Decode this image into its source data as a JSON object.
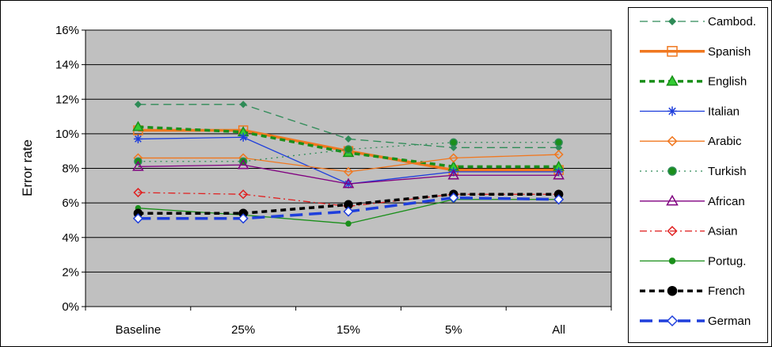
{
  "chart_data": {
    "type": "line",
    "categories": [
      "Baseline",
      "25%",
      "15%",
      "5%",
      "All"
    ],
    "ylabel": "Error rate",
    "ylim": [
      0,
      16
    ],
    "yticks": [
      "0%",
      "2%",
      "4%",
      "6%",
      "8%",
      "10%",
      "12%",
      "14%",
      "16%"
    ],
    "plot_background": "#c0c0c0",
    "grid": "horizontal",
    "legend_position": "right",
    "series": [
      {
        "name": "Cambod.",
        "values": [
          11.7,
          11.7,
          9.7,
          9.2,
          9.2
        ],
        "color": "#2e8b57",
        "dash": "10,6",
        "width": 1.3,
        "marker": "diamond",
        "fill": "#2e8b57",
        "msize": 3.5
      },
      {
        "name": "Spanish",
        "values": [
          10.2,
          10.2,
          9.0,
          7.9,
          7.9
        ],
        "color": "#f07820",
        "dash": "",
        "width": 3.5,
        "marker": "square",
        "fill": "none",
        "msize": 5.5
      },
      {
        "name": "English",
        "values": [
          10.4,
          10.1,
          8.9,
          8.1,
          8.1
        ],
        "color": "#1a8f1a",
        "dash": "7,5",
        "width": 3.5,
        "marker": "triangle",
        "fill": "#33cc33",
        "msize": 6
      },
      {
        "name": "Italian",
        "values": [
          9.7,
          9.8,
          7.1,
          7.8,
          7.8
        ],
        "color": "#1f3fdc",
        "dash": "",
        "width": 1.3,
        "marker": "star",
        "fill": "none",
        "msize": 5.5
      },
      {
        "name": "Arabic",
        "values": [
          8.6,
          8.6,
          7.8,
          8.6,
          8.8
        ],
        "color": "#f07820",
        "dash": "",
        "width": 1.3,
        "marker": "diamond",
        "fill": "none",
        "msize": 5
      },
      {
        "name": "Turkish",
        "values": [
          8.4,
          8.4,
          9.1,
          9.5,
          9.5
        ],
        "color": "#2e8b57",
        "dash": "2,5",
        "width": 1.3,
        "marker": "circle",
        "fill": "#1a8f1a",
        "msize": 4.5
      },
      {
        "name": "African",
        "values": [
          8.1,
          8.2,
          7.1,
          7.6,
          7.6
        ],
        "color": "#800080",
        "dash": "",
        "width": 1.3,
        "marker": "triangle",
        "fill": "none",
        "msize": 6
      },
      {
        "name": "Asian",
        "values": [
          6.6,
          6.5,
          5.8,
          6.5,
          6.5
        ],
        "color": "#e02020",
        "dash": "9,4,2,4",
        "width": 1.3,
        "marker": "diamond",
        "fill": "none",
        "msize": 5
      },
      {
        "name": "Portug.",
        "values": [
          5.7,
          5.3,
          4.8,
          6.2,
          6.2
        ],
        "color": "#1a8f1a",
        "dash": "",
        "width": 1.3,
        "marker": "circle",
        "fill": "#1a8f1a",
        "msize": 3
      },
      {
        "name": "French",
        "values": [
          5.4,
          5.4,
          5.9,
          6.5,
          6.5
        ],
        "color": "#000000",
        "dash": "7,5",
        "width": 3.5,
        "marker": "circle",
        "fill": "#000000",
        "msize": 5
      },
      {
        "name": "German",
        "values": [
          5.1,
          5.1,
          5.5,
          6.3,
          6.2
        ],
        "color": "#1f3fdc",
        "dash": "16,8",
        "width": 3.5,
        "marker": "diamond",
        "fill": "#ffffff",
        "msize": 5.5
      }
    ]
  }
}
